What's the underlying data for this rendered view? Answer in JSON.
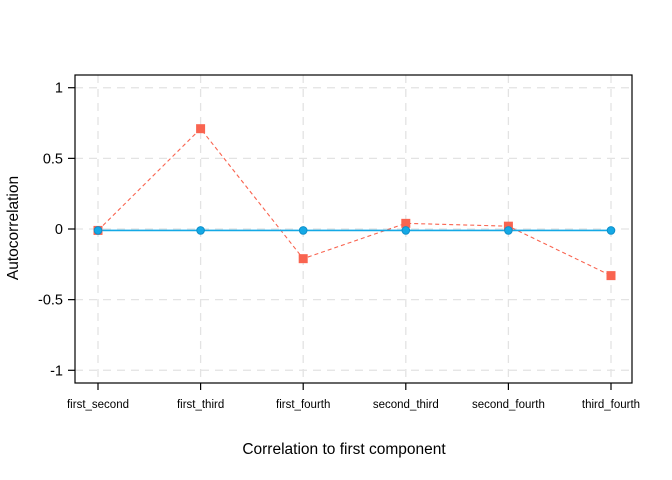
{
  "chart_data": {
    "type": "line",
    "title": "",
    "xlabel": "Correlation to first component",
    "ylabel": "Autocorrelation",
    "categories": [
      "first_second",
      "first_third",
      "first_fourth",
      "second_third",
      "second_fourth",
      "third_fourth"
    ],
    "series": [
      {
        "name": "red-dashed-squares",
        "marker": "square",
        "line_style": "dashed",
        "color": "#f96450",
        "values": [
          -0.01,
          0.71,
          -0.21,
          0.04,
          0.02,
          -0.33
        ]
      },
      {
        "name": "blue-solid-circles",
        "marker": "circle",
        "line_style": "solid",
        "color": "#14a9e6",
        "values": [
          -0.01,
          -0.01,
          -0.01,
          -0.01,
          -0.01,
          -0.01
        ]
      }
    ],
    "yticks": [
      1,
      0.5,
      0,
      -0.5,
      -1
    ],
    "ytick_labels": [
      "1",
      "0.5",
      "0",
      "-0.5",
      "-1"
    ],
    "ylim": [
      -1.09,
      1.09
    ],
    "grid": true,
    "grid_style": "dashed",
    "legend_position": "none",
    "colors": {
      "grid": "#e3e3e3",
      "axis": "#000000",
      "tick_text": "#000000",
      "background": "#ffffff",
      "blue_marker_edge": "#0f8fc9"
    }
  }
}
